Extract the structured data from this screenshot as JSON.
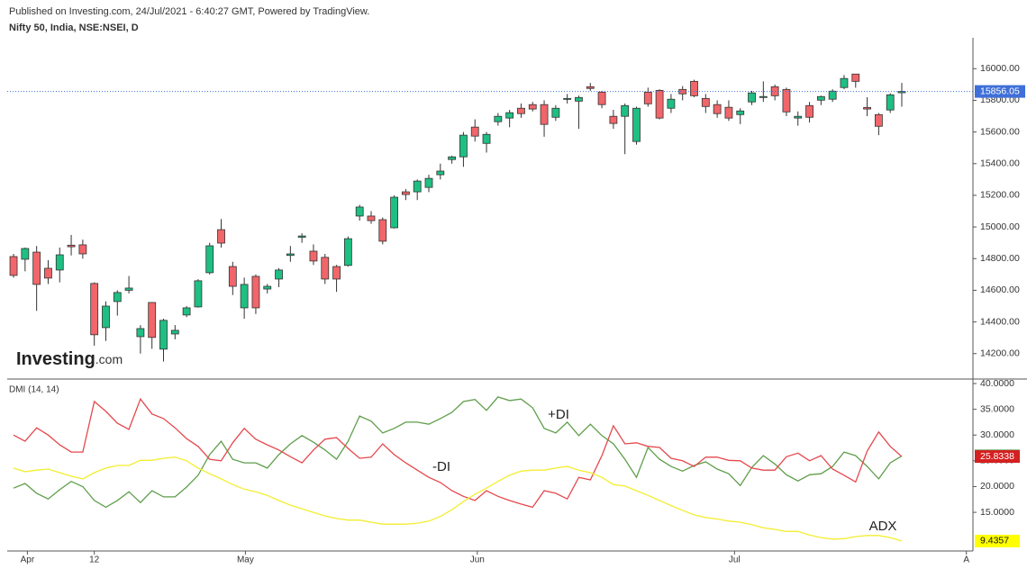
{
  "source": "Published on Investing.com, 24/Jul/2021 - 6:40:27 GMT, Powered by TradingView.",
  "logo": {
    "name": "Investing",
    "suffix": ".com"
  },
  "chart_data": [
    {
      "type": "candlestick",
      "title": "Nifty 50, India, NSE:NSEI, D",
      "up_color": "#1fbf83",
      "down_color": "#f0666a",
      "last_color": "#3f6fd8",
      "xlim": [
        -0.55,
        83.17
      ],
      "ylim": [
        14045,
        16195
      ],
      "grid": false,
      "yticks": [
        {
          "value": 14200,
          "label": "14200.00"
        },
        {
          "value": 14400,
          "label": "14400.00"
        },
        {
          "value": 14600,
          "label": "14600.00"
        },
        {
          "value": 14800,
          "label": "14800.00"
        },
        {
          "value": 15000,
          "label": "15000.00"
        },
        {
          "value": 15200,
          "label": "15200.00"
        },
        {
          "value": 15400,
          "label": "15400.00"
        },
        {
          "value": 15600,
          "label": "15600.00"
        },
        {
          "value": 15800,
          "label": "15800.00"
        },
        {
          "value": 16000,
          "label": "16000.00"
        }
      ],
      "open": [
        14813,
        14796,
        14841,
        14739,
        14728,
        14885,
        14887,
        14643,
        14364,
        14529,
        14600,
        14307,
        14523,
        14228,
        14324,
        14444,
        14495,
        14711,
        14983,
        14750,
        14489,
        14688,
        14608,
        14671,
        14820,
        14935,
        14847,
        14808,
        14750,
        14757,
        15069,
        15069,
        15046,
        14995,
        15222,
        15222,
        15250,
        15330,
        15426,
        15443,
        15631,
        15528,
        15665,
        15688,
        15750,
        15773,
        15773,
        15693,
        15806,
        15795,
        15886,
        15852,
        15699,
        15699,
        15540,
        15852,
        15863,
        15750,
        15869,
        15920,
        15812,
        15773,
        15756,
        15710,
        15790,
        15818,
        15886,
        15869,
        15688,
        15767,
        15801,
        15807,
        15881,
        15966,
        15755,
        15710,
        15739,
        15848
      ],
      "high": [
        14830,
        14870,
        14880,
        14790,
        14870,
        14950,
        14920,
        14650,
        14530,
        14600,
        14690,
        14380,
        14525,
        14420,
        14380,
        14500,
        14670,
        14900,
        15050,
        14780,
        14680,
        14700,
        14640,
        14740,
        14880,
        14960,
        14890,
        14830,
        14760,
        14940,
        15140,
        15100,
        15060,
        15200,
        15240,
        15300,
        15330,
        15400,
        15450,
        15600,
        15680,
        15600,
        15720,
        15740,
        15780,
        15790,
        15800,
        15770,
        15840,
        15830,
        15910,
        15860,
        15740,
        15780,
        15760,
        15880,
        15870,
        15840,
        15890,
        15930,
        15840,
        15800,
        15800,
        15750,
        15860,
        15920,
        15900,
        15880,
        15730,
        15790,
        15830,
        15870,
        15960,
        15966,
        15820,
        15720,
        15845,
        15910
      ],
      "low": [
        14680,
        14720,
        14470,
        14640,
        14650,
        14820,
        14800,
        14250,
        14280,
        14440,
        14580,
        14200,
        14230,
        14150,
        14290,
        14430,
        14490,
        14700,
        14870,
        14570,
        14420,
        14450,
        14580,
        14620,
        14780,
        14900,
        14760,
        14640,
        14590,
        14750,
        15040,
        15020,
        14890,
        14990,
        15170,
        15170,
        15220,
        15300,
        15400,
        15380,
        15540,
        15470,
        15640,
        15630,
        15690,
        15730,
        15570,
        15670,
        15780,
        15620,
        15860,
        15750,
        15620,
        15460,
        15520,
        15760,
        15680,
        15720,
        15800,
        15820,
        15720,
        15690,
        15670,
        15650,
        15770,
        15790,
        15800,
        15700,
        15640,
        15660,
        15770,
        15790,
        15870,
        15880,
        15700,
        15580,
        15720,
        15760
      ],
      "close": [
        14694,
        14864,
        14637,
        14677,
        14824,
        14875,
        14830,
        14319,
        14500,
        14586,
        14614,
        14358,
        14302,
        14410,
        14347,
        14489,
        14660,
        14881,
        14898,
        14625,
        14637,
        14489,
        14625,
        14728,
        14830,
        14943,
        14785,
        14671,
        14671,
        14926,
        15126,
        15040,
        14910,
        15188,
        15205,
        15290,
        15307,
        15353,
        15443,
        15580,
        15574,
        15585,
        15699,
        15722,
        15716,
        15745,
        15648,
        15750,
        15812,
        15818,
        15875,
        15773,
        15654,
        15767,
        15750,
        15778,
        15688,
        15807,
        15841,
        15829,
        15761,
        15716,
        15688,
        15733,
        15847,
        15824,
        15829,
        15727,
        15699,
        15693,
        15824,
        15858,
        15938,
        15920,
        15745,
        15636,
        15835,
        15856.05
      ]
    },
    {
      "type": "line",
      "title": "DMI (14, 14)",
      "xlim": [
        -0.55,
        83.17
      ],
      "ylim": [
        7.5,
        40.7
      ],
      "grid": false,
      "xticks": [
        {
          "value": 1.2,
          "label": "Apr"
        },
        {
          "value": 7,
          "label": "12"
        },
        {
          "value": 20.1,
          "label": "May"
        },
        {
          "value": 40.2,
          "label": "Jun"
        },
        {
          "value": 62.5,
          "label": "Jul"
        },
        {
          "value": 82.6,
          "label": "A"
        }
      ],
      "yticks": [
        {
          "value": 15,
          "label": "15.0000"
        },
        {
          "value": 20,
          "label": "20.0000"
        },
        {
          "value": 25,
          "label": "25.0000"
        },
        {
          "value": 30,
          "label": "30.0000"
        },
        {
          "value": 35,
          "label": "35.0000"
        },
        {
          "value": 40,
          "label": "40.0000"
        }
      ],
      "series": [
        {
          "name": "+DI",
          "color": "#5f9e4b",
          "values": [
            19.7,
            20.6,
            18.7,
            17.6,
            19.4,
            21,
            20,
            17.3,
            16,
            17.3,
            19,
            16.9,
            19.2,
            18,
            18,
            19.9,
            22.2,
            26.2,
            28.8,
            25.3,
            24.6,
            24.6,
            23.6,
            26.2,
            28.3,
            29.9,
            28.6,
            27.1,
            25.3,
            28.8,
            33.7,
            32.7,
            30.4,
            31.3,
            32.5,
            32.5,
            32.1,
            33.2,
            34.4,
            36.5,
            36.9,
            34.8,
            37.4,
            36.7,
            37,
            35.3,
            31.3,
            30.4,
            32.5,
            29.9,
            32.1,
            29.9,
            28.3,
            25.3,
            21.8,
            27.6,
            25.3,
            23.9,
            23,
            24.1,
            24.8,
            23.4,
            22.5,
            20.2,
            23.7,
            26,
            24.4,
            22.3,
            21.1,
            22.3,
            22.5,
            23.9,
            26.7,
            26,
            23.9,
            21.5,
            24.6,
            25.9427
          ]
        },
        {
          "name": "-DI",
          "color": "#e5484d",
          "values": [
            30,
            28.8,
            31.4,
            30,
            28.1,
            26.7,
            26.7,
            36.5,
            34.6,
            32.3,
            31.1,
            37,
            34.1,
            33.2,
            31.4,
            29.3,
            27.8,
            25.3,
            25,
            28.5,
            31.3,
            29.2,
            28.1,
            27.1,
            25.8,
            24.6,
            27.1,
            29.2,
            29.5,
            27.4,
            25.5,
            25.7,
            28.3,
            26.2,
            24.6,
            23.2,
            21.8,
            20.8,
            19.2,
            18.1,
            17.3,
            19.2,
            18.1,
            17.3,
            16.6,
            16,
            19.2,
            18.7,
            17.6,
            21.8,
            21.3,
            26,
            31.8,
            28.3,
            28.5,
            27.8,
            27.6,
            25.5,
            25,
            23.9,
            25.7,
            25.7,
            25.1,
            25,
            23.6,
            23.2,
            23.2,
            25.8,
            26.5,
            25,
            26,
            23.4,
            22.2,
            20.9,
            26.9,
            30.6,
            27.8,
            25.8338
          ]
        },
        {
          "name": "ADX",
          "color": "#f2ee30",
          "values": [
            23.6,
            22.9,
            23.2,
            23.4,
            22.7,
            22,
            21.5,
            22.7,
            23.6,
            24.1,
            24.1,
            25.1,
            25.1,
            25.5,
            25.7,
            25,
            23.6,
            22.5,
            21.5,
            20.4,
            19.5,
            19,
            18.3,
            17.3,
            16.4,
            15.7,
            15,
            14.3,
            13.8,
            13.5,
            13.5,
            13.1,
            12.7,
            12.7,
            12.7,
            12.9,
            13.3,
            14.2,
            15.5,
            17.1,
            18.5,
            19.7,
            21,
            22.2,
            23,
            23.2,
            23.2,
            23.6,
            23.9,
            23.2,
            22.7,
            21.8,
            20.4,
            20.1,
            19.2,
            18.3,
            17.3,
            16.3,
            15.4,
            14.5,
            14,
            13.7,
            13.3,
            13.1,
            12.6,
            12,
            11.7,
            11.3,
            11.3,
            10.6,
            10.1,
            9.8,
            9.9,
            10.3,
            10.5,
            10.5,
            10.1,
            9.4357
          ]
        }
      ]
    }
  ]
}
